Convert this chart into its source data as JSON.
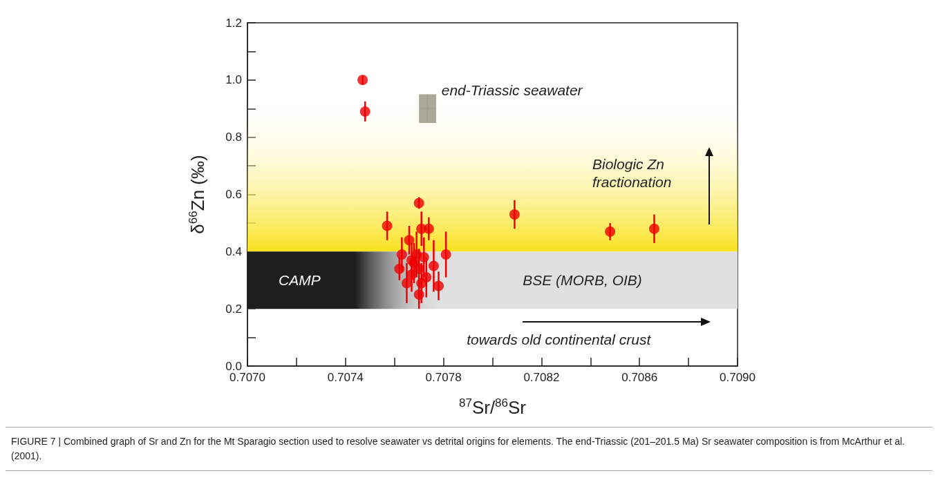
{
  "chart_data": {
    "type": "scatter",
    "xlabel": "$^{87}$Sr/$^{86}$Sr",
    "ylabel": "δ$^{66}$Zn (‰)",
    "xlim": [
      0.707,
      0.709
    ],
    "xticks": [
      {
        "value": 0.707,
        "label": "0.7070"
      },
      {
        "value": 0.7072,
        "label": null
      },
      {
        "value": 0.7074,
        "label": "0.7074"
      },
      {
        "value": 0.7076,
        "label": null
      },
      {
        "value": 0.7078,
        "label": "0.7078"
      },
      {
        "value": 0.708,
        "label": null
      },
      {
        "value": 0.7082,
        "label": "0.7082"
      },
      {
        "value": 0.7084,
        "label": null
      },
      {
        "value": 0.7086,
        "label": "0.7086"
      },
      {
        "value": 0.7088,
        "label": null
      },
      {
        "value": 0.709,
        "label": "0.7090"
      }
    ],
    "ylim": [
      0,
      1.2
    ],
    "yticks": [
      {
        "value": 0,
        "label": "0.0"
      },
      {
        "value": 0.1,
        "label": null
      },
      {
        "value": 0.2,
        "label": "0.2"
      },
      {
        "value": 0.3,
        "label": null
      },
      {
        "value": 0.4,
        "label": "0.4"
      },
      {
        "value": 0.5,
        "label": null
      },
      {
        "value": 0.6,
        "label": "0.6"
      },
      {
        "value": 0.7,
        "label": null
      },
      {
        "value": 0.8,
        "label": "0.8"
      },
      {
        "value": 0.9,
        "label": null
      },
      {
        "value": 1.0,
        "label": "1.0"
      },
      {
        "value": 1.1,
        "label": null
      },
      {
        "value": 1.2,
        "label": "1.2"
      }
    ],
    "grid": false,
    "marker": "circle",
    "bands": [
      {
        "axis": "y",
        "from": 0.4,
        "to": 0.95,
        "label": "Biologic Zn\nfractionation",
        "color": "#f9e21f"
      },
      {
        "axis": "y",
        "from": 0.2,
        "to": 0.4,
        "label": "BSE (MORB, OIB)",
        "color": "#e0e0e0"
      },
      {
        "axis": "x",
        "from": 0.707,
        "to": 0.7078,
        "label": "CAMP",
        "color": "#1e1e1e"
      }
    ],
    "series": [
      {
        "type": "scatter",
        "marker": "square",
        "color": "#aaa898",
        "x": [
          0.707735
        ],
        "values": [
          0.9
        ],
        "errors": [
          0.05
        ],
        "xerrors": [
          3.5e-05
        ]
      },
      {
        "type": "scatter",
        "color": "#ee0000",
        "x": [
          0.70747,
          0.70748,
          0.70757,
          0.7077,
          0.70771,
          0.70774,
          0.70809,
          0.70848,
          0.70866,
          0.70781,
          0.70766,
          0.70763,
          0.70769,
          0.70772,
          0.70767,
          0.70762,
          0.70776,
          0.70768,
          0.7077,
          0.70767,
          0.70773,
          0.70765,
          0.70771,
          0.70778,
          0.7077
        ],
        "values": [
          1.0,
          0.89,
          0.49,
          0.57,
          0.48,
          0.48,
          0.53,
          0.47,
          0.48,
          0.39,
          0.44,
          0.39,
          0.39,
          0.38,
          0.37,
          0.34,
          0.35,
          0.36,
          0.34,
          0.32,
          0.31,
          0.29,
          0.29,
          0.28,
          0.25
        ],
        "errors": [
          0.015,
          0.035,
          0.05,
          0.02,
          0.06,
          0.04,
          0.05,
          0.03,
          0.05,
          0.08,
          0.05,
          0.06,
          0.08,
          0.07,
          0.06,
          0.04,
          0.09,
          0.07,
          0.07,
          0.06,
          0.07,
          0.07,
          0.07,
          0.05,
          0.05
        ]
      }
    ],
    "annotations": [
      "end-Triassic seawater",
      "towards old continental crust",
      "FIGURE 7 | Combined graph of Sr and Zn for the Mt Sparagio section used to resolve seawater vs detrital origins for elements. The end-Triassic (201–201.5 Ma) Sr seawater composition is from McArthur et al. (2001)."
    ]
  }
}
